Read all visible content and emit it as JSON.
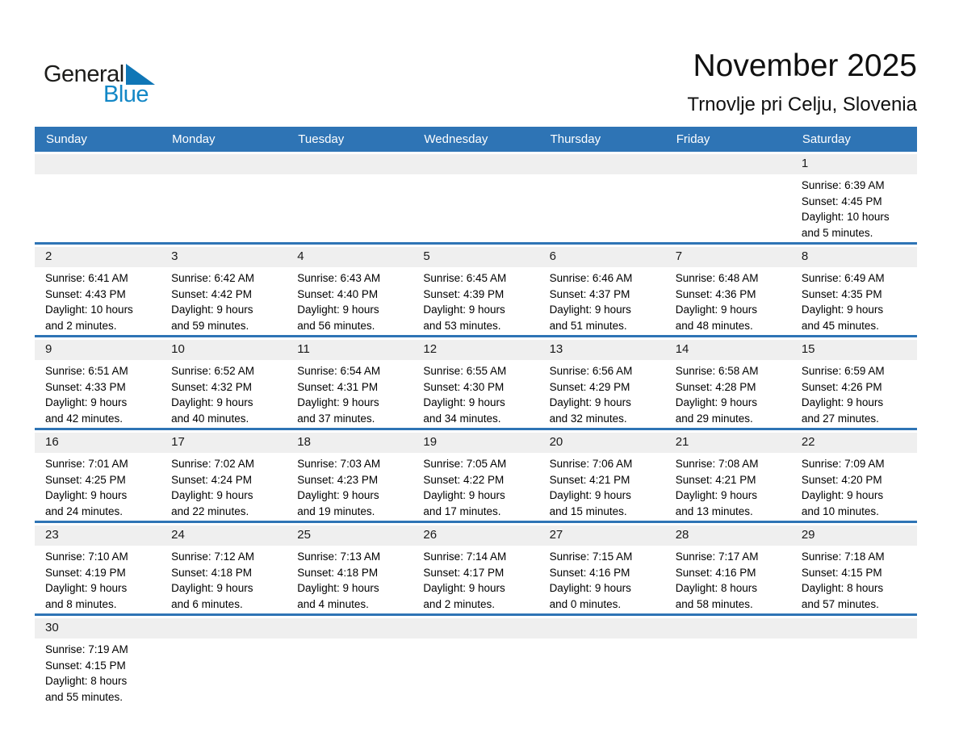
{
  "logo": {
    "text_general": "General",
    "text_blue": "Blue"
  },
  "title": "November 2025",
  "subtitle": "Trnovlje pri Celju, Slovenia",
  "weekdays": [
    "Sunday",
    "Monday",
    "Tuesday",
    "Wednesday",
    "Thursday",
    "Friday",
    "Saturday"
  ],
  "colors": {
    "header_blue": "#2E74B5",
    "band_gray": "#EFEFEF",
    "logo_blue": "#1287C6",
    "logo_triangle_blue": "#0F76B6",
    "logo_dark": "#1D1D1B"
  },
  "weeks": [
    [
      null,
      null,
      null,
      null,
      null,
      null,
      {
        "day": "1",
        "sunrise": "Sunrise: 6:39 AM",
        "sunset": "Sunset: 4:45 PM",
        "daylight_line1": "Daylight: 10 hours",
        "daylight_line2": "and 5 minutes."
      }
    ],
    [
      {
        "day": "2",
        "sunrise": "Sunrise: 6:41 AM",
        "sunset": "Sunset: 4:43 PM",
        "daylight_line1": "Daylight: 10 hours",
        "daylight_line2": "and 2 minutes."
      },
      {
        "day": "3",
        "sunrise": "Sunrise: 6:42 AM",
        "sunset": "Sunset: 4:42 PM",
        "daylight_line1": "Daylight: 9 hours",
        "daylight_line2": "and 59 minutes."
      },
      {
        "day": "4",
        "sunrise": "Sunrise: 6:43 AM",
        "sunset": "Sunset: 4:40 PM",
        "daylight_line1": "Daylight: 9 hours",
        "daylight_line2": "and 56 minutes."
      },
      {
        "day": "5",
        "sunrise": "Sunrise: 6:45 AM",
        "sunset": "Sunset: 4:39 PM",
        "daylight_line1": "Daylight: 9 hours",
        "daylight_line2": "and 53 minutes."
      },
      {
        "day": "6",
        "sunrise": "Sunrise: 6:46 AM",
        "sunset": "Sunset: 4:37 PM",
        "daylight_line1": "Daylight: 9 hours",
        "daylight_line2": "and 51 minutes."
      },
      {
        "day": "7",
        "sunrise": "Sunrise: 6:48 AM",
        "sunset": "Sunset: 4:36 PM",
        "daylight_line1": "Daylight: 9 hours",
        "daylight_line2": "and 48 minutes."
      },
      {
        "day": "8",
        "sunrise": "Sunrise: 6:49 AM",
        "sunset": "Sunset: 4:35 PM",
        "daylight_line1": "Daylight: 9 hours",
        "daylight_line2": "and 45 minutes."
      }
    ],
    [
      {
        "day": "9",
        "sunrise": "Sunrise: 6:51 AM",
        "sunset": "Sunset: 4:33 PM",
        "daylight_line1": "Daylight: 9 hours",
        "daylight_line2": "and 42 minutes."
      },
      {
        "day": "10",
        "sunrise": "Sunrise: 6:52 AM",
        "sunset": "Sunset: 4:32 PM",
        "daylight_line1": "Daylight: 9 hours",
        "daylight_line2": "and 40 minutes."
      },
      {
        "day": "11",
        "sunrise": "Sunrise: 6:54 AM",
        "sunset": "Sunset: 4:31 PM",
        "daylight_line1": "Daylight: 9 hours",
        "daylight_line2": "and 37 minutes."
      },
      {
        "day": "12",
        "sunrise": "Sunrise: 6:55 AM",
        "sunset": "Sunset: 4:30 PM",
        "daylight_line1": "Daylight: 9 hours",
        "daylight_line2": "and 34 minutes."
      },
      {
        "day": "13",
        "sunrise": "Sunrise: 6:56 AM",
        "sunset": "Sunset: 4:29 PM",
        "daylight_line1": "Daylight: 9 hours",
        "daylight_line2": "and 32 minutes."
      },
      {
        "day": "14",
        "sunrise": "Sunrise: 6:58 AM",
        "sunset": "Sunset: 4:28 PM",
        "daylight_line1": "Daylight: 9 hours",
        "daylight_line2": "and 29 minutes."
      },
      {
        "day": "15",
        "sunrise": "Sunrise: 6:59 AM",
        "sunset": "Sunset: 4:26 PM",
        "daylight_line1": "Daylight: 9 hours",
        "daylight_line2": "and 27 minutes."
      }
    ],
    [
      {
        "day": "16",
        "sunrise": "Sunrise: 7:01 AM",
        "sunset": "Sunset: 4:25 PM",
        "daylight_line1": "Daylight: 9 hours",
        "daylight_line2": "and 24 minutes."
      },
      {
        "day": "17",
        "sunrise": "Sunrise: 7:02 AM",
        "sunset": "Sunset: 4:24 PM",
        "daylight_line1": "Daylight: 9 hours",
        "daylight_line2": "and 22 minutes."
      },
      {
        "day": "18",
        "sunrise": "Sunrise: 7:03 AM",
        "sunset": "Sunset: 4:23 PM",
        "daylight_line1": "Daylight: 9 hours",
        "daylight_line2": "and 19 minutes."
      },
      {
        "day": "19",
        "sunrise": "Sunrise: 7:05 AM",
        "sunset": "Sunset: 4:22 PM",
        "daylight_line1": "Daylight: 9 hours",
        "daylight_line2": "and 17 minutes."
      },
      {
        "day": "20",
        "sunrise": "Sunrise: 7:06 AM",
        "sunset": "Sunset: 4:21 PM",
        "daylight_line1": "Daylight: 9 hours",
        "daylight_line2": "and 15 minutes."
      },
      {
        "day": "21",
        "sunrise": "Sunrise: 7:08 AM",
        "sunset": "Sunset: 4:21 PM",
        "daylight_line1": "Daylight: 9 hours",
        "daylight_line2": "and 13 minutes."
      },
      {
        "day": "22",
        "sunrise": "Sunrise: 7:09 AM",
        "sunset": "Sunset: 4:20 PM",
        "daylight_line1": "Daylight: 9 hours",
        "daylight_line2": "and 10 minutes."
      }
    ],
    [
      {
        "day": "23",
        "sunrise": "Sunrise: 7:10 AM",
        "sunset": "Sunset: 4:19 PM",
        "daylight_line1": "Daylight: 9 hours",
        "daylight_line2": "and 8 minutes."
      },
      {
        "day": "24",
        "sunrise": "Sunrise: 7:12 AM",
        "sunset": "Sunset: 4:18 PM",
        "daylight_line1": "Daylight: 9 hours",
        "daylight_line2": "and 6 minutes."
      },
      {
        "day": "25",
        "sunrise": "Sunrise: 7:13 AM",
        "sunset": "Sunset: 4:18 PM",
        "daylight_line1": "Daylight: 9 hours",
        "daylight_line2": "and 4 minutes."
      },
      {
        "day": "26",
        "sunrise": "Sunrise: 7:14 AM",
        "sunset": "Sunset: 4:17 PM",
        "daylight_line1": "Daylight: 9 hours",
        "daylight_line2": "and 2 minutes."
      },
      {
        "day": "27",
        "sunrise": "Sunrise: 7:15 AM",
        "sunset": "Sunset: 4:16 PM",
        "daylight_line1": "Daylight: 9 hours",
        "daylight_line2": "and 0 minutes."
      },
      {
        "day": "28",
        "sunrise": "Sunrise: 7:17 AM",
        "sunset": "Sunset: 4:16 PM",
        "daylight_line1": "Daylight: 8 hours",
        "daylight_line2": "and 58 minutes."
      },
      {
        "day": "29",
        "sunrise": "Sunrise: 7:18 AM",
        "sunset": "Sunset: 4:15 PM",
        "daylight_line1": "Daylight: 8 hours",
        "daylight_line2": "and 57 minutes."
      }
    ],
    [
      {
        "day": "30",
        "sunrise": "Sunrise: 7:19 AM",
        "sunset": "Sunset: 4:15 PM",
        "daylight_line1": "Daylight: 8 hours",
        "daylight_line2": "and 55 minutes."
      },
      null,
      null,
      null,
      null,
      null,
      null
    ]
  ]
}
